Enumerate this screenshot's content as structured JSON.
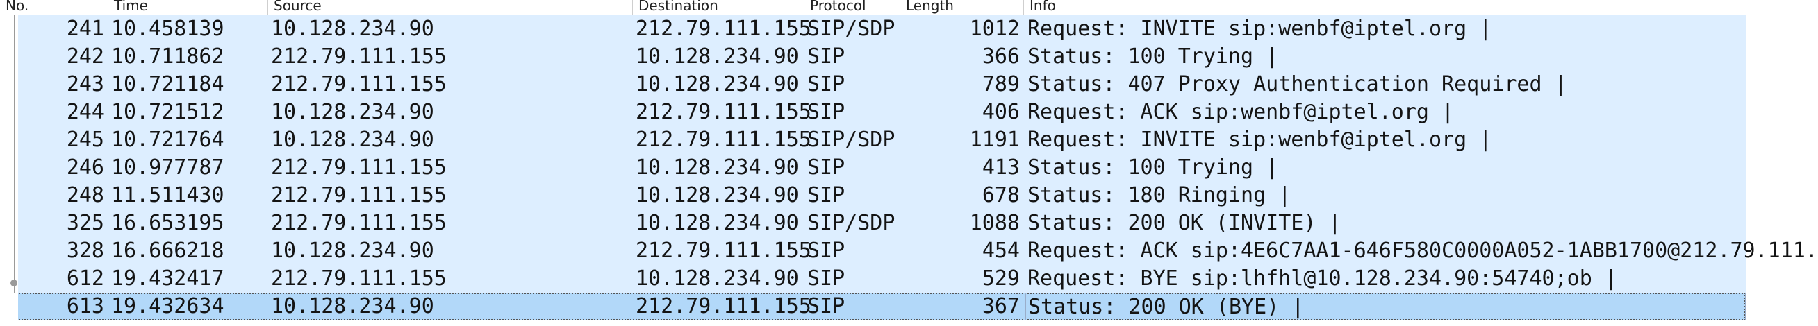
{
  "columns": {
    "no": "No.",
    "time": "Time",
    "source": "Source",
    "destination": "Destination",
    "protocol": "Protocol",
    "length": "Length",
    "info": "Info"
  },
  "rows": [
    {
      "no": "241",
      "time": "10.458139",
      "source": "10.128.234.90",
      "destination": "212.79.111.155",
      "protocol": "SIP/SDP",
      "length": "1012",
      "info": "Request: INVITE sip:wenbf@iptel.org |"
    },
    {
      "no": "242",
      "time": "10.711862",
      "source": "212.79.111.155",
      "destination": "10.128.234.90",
      "protocol": "SIP",
      "length": "366",
      "info": "Status: 100 Trying |"
    },
    {
      "no": "243",
      "time": "10.721184",
      "source": "212.79.111.155",
      "destination": "10.128.234.90",
      "protocol": "SIP",
      "length": "789",
      "info": "Status: 407 Proxy Authentication Required |"
    },
    {
      "no": "244",
      "time": "10.721512",
      "source": "10.128.234.90",
      "destination": "212.79.111.155",
      "protocol": "SIP",
      "length": "406",
      "info": "Request: ACK sip:wenbf@iptel.org |"
    },
    {
      "no": "245",
      "time": "10.721764",
      "source": "10.128.234.90",
      "destination": "212.79.111.155",
      "protocol": "SIP/SDP",
      "length": "1191",
      "info": "Request: INVITE sip:wenbf@iptel.org |"
    },
    {
      "no": "246",
      "time": "10.977787",
      "source": "212.79.111.155",
      "destination": "10.128.234.90",
      "protocol": "SIP",
      "length": "413",
      "info": "Status: 100 Trying |"
    },
    {
      "no": "248",
      "time": "11.511430",
      "source": "212.79.111.155",
      "destination": "10.128.234.90",
      "protocol": "SIP",
      "length": "678",
      "info": "Status: 180 Ringing |"
    },
    {
      "no": "325",
      "time": "16.653195",
      "source": "212.79.111.155",
      "destination": "10.128.234.90",
      "protocol": "SIP/SDP",
      "length": "1088",
      "info": "Status: 200 OK (INVITE) |"
    },
    {
      "no": "328",
      "time": "16.666218",
      "source": "10.128.234.90",
      "destination": "212.79.111.155",
      "protocol": "SIP",
      "length": "454",
      "info": "Request: ACK sip:4E6C7AA1-646F580C0000A052-1ABB1700@212.79.111."
    },
    {
      "no": "612",
      "time": "19.432417",
      "source": "212.79.111.155",
      "destination": "10.128.234.90",
      "protocol": "SIP",
      "length": "529",
      "info": "Request: BYE sip:lhfhl@10.128.234.90:54740;ob |"
    },
    {
      "no": "613",
      "time": "19.432634",
      "source": "10.128.234.90",
      "destination": "212.79.111.155",
      "protocol": "SIP",
      "length": "367",
      "info": "Status: 200 OK (BYE) |",
      "selected": true
    }
  ],
  "colors": {
    "row_bg": "#ddeeff",
    "selected_bg": "#b2d8f9",
    "header_bg": "#ffffff"
  }
}
